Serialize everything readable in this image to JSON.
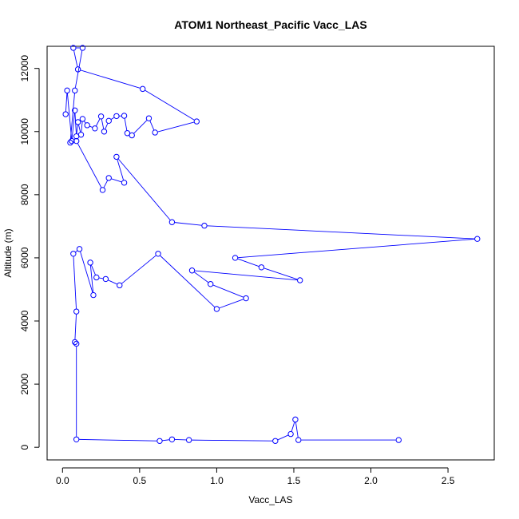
{
  "chart_data": {
    "type": "line",
    "title": "ATOM1 Northeast_Pacific Vacc_LAS",
    "xlabel": "Vacc_LAS",
    "ylabel": "Altitude (m)",
    "xlim": [
      -0.1,
      2.8
    ],
    "ylim": [
      -400,
      12700
    ],
    "xticks": [
      0.0,
      0.5,
      1.0,
      1.5,
      2.0,
      2.5
    ],
    "xtick_labels": [
      "0.0",
      "0.5",
      "1.0",
      "1.5",
      "2.0",
      "2.5"
    ],
    "yticks": [
      0,
      2000,
      4000,
      6000,
      8000,
      10000,
      12000
    ],
    "ytick_labels": [
      "0",
      "2000",
      "4000",
      "6000",
      "8000",
      "10000",
      "12000"
    ],
    "grid": false,
    "series": [
      {
        "color": "#0000ff",
        "marker": "open-circle",
        "points": [
          [
            0.02,
            10550
          ],
          [
            0.03,
            11300
          ],
          [
            0.06,
            9700
          ],
          [
            0.08,
            10670
          ],
          [
            0.09,
            9850
          ],
          [
            0.1,
            10300
          ],
          [
            0.12,
            9900
          ],
          [
            0.13,
            10400
          ],
          [
            0.16,
            10200
          ],
          [
            0.21,
            10100
          ],
          [
            0.25,
            10480
          ],
          [
            0.27,
            10000
          ],
          [
            0.3,
            10340
          ],
          [
            0.35,
            10490
          ],
          [
            0.4,
            10500
          ],
          [
            0.42,
            9950
          ],
          [
            0.45,
            9880
          ],
          [
            0.56,
            10420
          ],
          [
            0.6,
            9970
          ],
          [
            0.87,
            10320
          ],
          [
            0.52,
            11350
          ],
          [
            0.1,
            11970
          ],
          [
            0.07,
            12650
          ],
          [
            0.13,
            12650
          ],
          [
            0.08,
            11300
          ],
          [
            0.05,
            9650
          ],
          [
            0.09,
            9700
          ],
          [
            0.26,
            8150
          ],
          [
            0.3,
            8530
          ],
          [
            0.4,
            8380
          ],
          [
            0.35,
            9200
          ],
          [
            0.71,
            7130
          ],
          [
            0.92,
            7020
          ],
          [
            2.69,
            6600
          ],
          [
            1.12,
            6000
          ],
          [
            1.29,
            5700
          ],
          [
            1.54,
            5290
          ],
          [
            0.84,
            5600
          ],
          [
            0.96,
            5170
          ],
          [
            1.19,
            4720
          ],
          [
            1.0,
            4380
          ],
          [
            0.62,
            6130
          ],
          [
            0.37,
            5130
          ],
          [
            0.28,
            5330
          ],
          [
            0.22,
            5380
          ],
          [
            0.18,
            5850
          ],
          [
            0.2,
            4820
          ],
          [
            0.11,
            6280
          ],
          [
            0.07,
            6130
          ],
          [
            0.09,
            4300
          ],
          [
            0.08,
            3330
          ],
          [
            0.09,
            3280
          ],
          [
            0.09,
            250
          ],
          [
            0.63,
            200
          ],
          [
            0.71,
            250
          ],
          [
            0.82,
            230
          ],
          [
            1.38,
            200
          ],
          [
            1.48,
            420
          ],
          [
            1.51,
            880
          ],
          [
            1.53,
            230
          ],
          [
            2.18,
            230
          ]
        ]
      }
    ]
  }
}
